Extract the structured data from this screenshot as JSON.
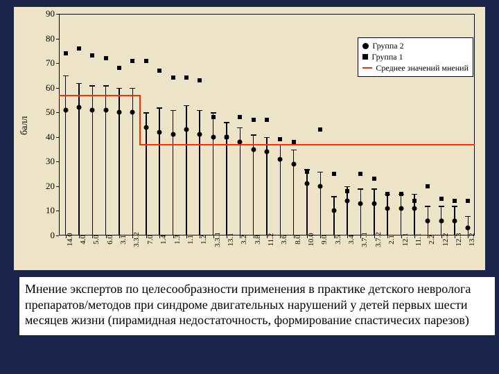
{
  "chart": {
    "type": "scatter-stem",
    "background_color": "#ede4c8",
    "page_background": "#1a2348",
    "ylabel": "балл",
    "label_fontsize": 14,
    "ylim": [
      0,
      90
    ],
    "ytick_step": 10,
    "yticks": [
      0,
      10,
      20,
      30,
      40,
      50,
      60,
      70,
      80,
      90
    ],
    "axis_color": "#000000",
    "mean_line_color": "#ff2a00",
    "marker_group2_color": "#000000",
    "marker_group1_color": "#000000",
    "marker_circle_size": 7,
    "marker_square_size": 6,
    "stem_width": 1.5,
    "error_cap_width": 8,
    "categories": [
      "14.0",
      "4.0",
      "5.0",
      "6.0",
      "3.1",
      "3.3.2",
      "7.0",
      "1.4",
      "1.3",
      "1.1",
      "1.2",
      "3.3.1",
      "13.1",
      "3.2",
      "3.8",
      "11.2",
      "3.6",
      "8.0",
      "10.0",
      "9.0",
      "3.5",
      "3.4",
      "3.7.1",
      "3.7.2",
      "2.1",
      "12.1",
      "11.1",
      "2.2",
      "12.2",
      "12.3",
      "13.2"
    ],
    "group2": [
      51,
      52,
      51,
      51,
      50,
      50,
      44,
      42,
      41,
      43,
      41,
      40,
      40,
      38,
      35,
      34,
      31,
      29,
      21,
      20,
      10,
      14,
      13,
      13,
      11,
      11,
      11,
      6,
      6,
      6,
      3
    ],
    "group2_err": [
      14,
      10,
      10,
      10,
      10,
      10,
      6,
      10,
      10,
      10,
      10,
      10,
      6,
      6,
      6,
      6,
      6,
      6,
      6,
      6,
      6,
      6,
      6,
      6,
      6,
      6,
      6,
      6,
      6,
      6,
      5
    ],
    "group1": [
      74,
      76,
      73,
      72,
      68,
      71,
      71,
      67,
      64,
      64,
      63,
      48,
      40,
      48,
      47,
      47,
      39,
      38,
      26,
      43,
      25,
      18,
      25,
      23,
      17,
      17,
      14,
      20,
      15,
      14,
      14
    ],
    "mean_segments": [
      {
        "from_idx": 0,
        "to_idx": 5,
        "value": 57
      },
      {
        "from_idx": 5,
        "to_idx": 13,
        "value": 37,
        "vertical_at": 5
      },
      {
        "from_idx": 13,
        "to_idx": 30,
        "value": 37
      }
    ],
    "step_vertical_at": 5,
    "step_from_y": 57,
    "step_to_y": 37,
    "legend": {
      "items": [
        {
          "label": "Группа 2",
          "swatch": "circle",
          "color": "#000000"
        },
        {
          "label": "Группа 1",
          "swatch": "square",
          "color": "#000000"
        },
        {
          "label": "Среднее значений мнений",
          "swatch": "line",
          "color": "#ff2a00"
        }
      ]
    }
  },
  "caption": "Мнение экспертов по целесообразности применения в практике детского невролога препаратов/методов при синдроме двигательных нарушений у детей первых шести месяцев жизни (пирамидная недостаточность, формирование спастичесих парезов)"
}
